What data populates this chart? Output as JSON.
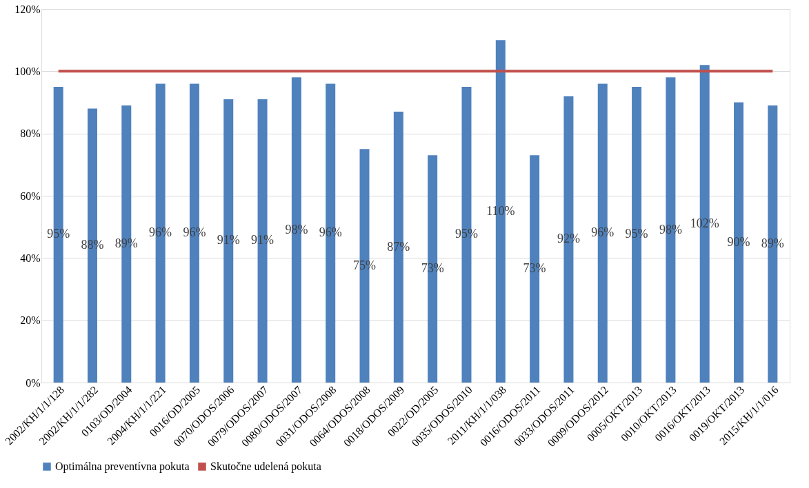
{
  "chart_data": {
    "type": "bar",
    "categories": [
      "2002/KH/1/1/128",
      "2002/KH/1/1/282",
      "0103/OD/2004",
      "2004/KH/1/1/221",
      "0016/OD/2005",
      "0070/ODOS/2006",
      "0079/ODOS/2007",
      "0080/ODOS/2007",
      "0031/ODOS/2008",
      "0064/ODOS/2008",
      "0018/ODOS/2009",
      "0022/OD/2005",
      "0035/ODOS/2010",
      "2011/KH/1/1/038",
      "0016/ODOS/2011",
      "0033/ODOS/2011",
      "0009/ODOS/2012",
      "0005/OKT/2013",
      "0010/OKT/2013",
      "0016/OKT/2013",
      "0019/OKT/2013",
      "2015/KH/1/1/016"
    ],
    "series": [
      {
        "name": "Optimálna preventívna pokuta",
        "color": "#4f81bd",
        "values": [
          95,
          88,
          89,
          96,
          96,
          91,
          91,
          98,
          96,
          75,
          87,
          73,
          95,
          110,
          73,
          92,
          96,
          95,
          98,
          102,
          90,
          89
        ],
        "value_labels": [
          "95%",
          "88%",
          "89%",
          "96%",
          "96%",
          "91%",
          "91%",
          "98%",
          "96%",
          "75%",
          "87%",
          "73%",
          "95%",
          "110%",
          "73%",
          "92%",
          "96%",
          "95%",
          "98%",
          "102%",
          "90%",
          "89%"
        ]
      },
      {
        "name": "Skutočne udelená pokuta",
        "type": "line",
        "color": "#c0504d",
        "values": [
          100,
          100,
          100,
          100,
          100,
          100,
          100,
          100,
          100,
          100,
          100,
          100,
          100,
          100,
          100,
          100,
          100,
          100,
          100,
          100,
          100,
          100
        ]
      }
    ],
    "ylim": [
      0,
      120
    ],
    "yticks": [
      {
        "value": 0,
        "label": "0%"
      },
      {
        "value": 20,
        "label": "20%"
      },
      {
        "value": 40,
        "label": "40%"
      },
      {
        "value": 60,
        "label": "60%"
      },
      {
        "value": 80,
        "label": "80%"
      },
      {
        "value": 100,
        "label": "100%"
      },
      {
        "value": 120,
        "label": "120%"
      }
    ],
    "grid": "y",
    "legend": "bottom"
  }
}
